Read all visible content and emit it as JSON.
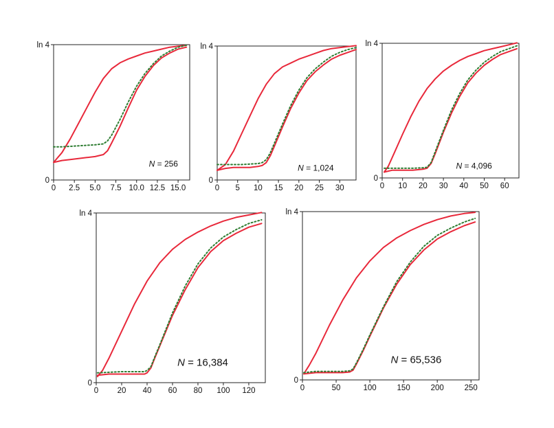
{
  "colors": {
    "curve": "#e8283a",
    "reference": "#2e7d32",
    "frame": "#222222",
    "background": "#ffffff"
  },
  "chart_data": [
    {
      "type": "line",
      "title": "",
      "xlabel": "",
      "ylabel": "",
      "n_label_italic": "N",
      "n_label_value": " = 256",
      "x_ticks": [
        0,
        2.5,
        5.0,
        7.5,
        10.0,
        12.5,
        15.0
      ],
      "x_tick_labels": [
        "0",
        "2.5",
        "5.0",
        "7.5",
        "10.0",
        "12.5",
        "15.0"
      ],
      "xlim": [
        0,
        16.4
      ],
      "y_ticks": [
        0,
        1.386
      ],
      "y_tick_labels": [
        "0",
        "ln 4"
      ],
      "ylim": [
        0,
        1.386
      ],
      "series": [
        {
          "style": "solid",
          "x": [
            0,
            1,
            2,
            3,
            4,
            5,
            6,
            7,
            8,
            9,
            10,
            11,
            12,
            13,
            14,
            15,
            16
          ],
          "values": [
            0.18,
            0.28,
            0.42,
            0.58,
            0.74,
            0.9,
            1.04,
            1.14,
            1.2,
            1.24,
            1.27,
            1.3,
            1.32,
            1.34,
            1.36,
            1.37,
            1.38
          ]
        },
        {
          "style": "solid",
          "x": [
            0,
            1,
            2,
            3,
            4,
            5,
            6,
            6.5,
            7,
            8,
            9,
            10,
            11,
            12,
            13,
            14,
            15,
            16
          ],
          "values": [
            0.18,
            0.2,
            0.21,
            0.22,
            0.23,
            0.24,
            0.26,
            0.3,
            0.38,
            0.55,
            0.74,
            0.92,
            1.06,
            1.17,
            1.25,
            1.3,
            1.34,
            1.36
          ]
        },
        {
          "style": "dotted",
          "x": [
            0,
            1,
            2,
            3,
            4,
            5,
            6,
            6.5,
            7,
            8,
            9,
            10,
            11,
            12,
            13,
            14,
            15,
            16
          ],
          "values": [
            0.34,
            0.34,
            0.345,
            0.35,
            0.355,
            0.36,
            0.37,
            0.4,
            0.46,
            0.62,
            0.8,
            0.96,
            1.09,
            1.19,
            1.27,
            1.32,
            1.36,
            1.38
          ]
        }
      ]
    },
    {
      "type": "line",
      "title": "",
      "xlabel": "",
      "ylabel": "",
      "n_label_italic": "N",
      "n_label_value": " = 1,024",
      "x_ticks": [
        0,
        5,
        10,
        15,
        20,
        25,
        30
      ],
      "x_tick_labels": [
        "0",
        "5",
        "10",
        "15",
        "20",
        "25",
        "30"
      ],
      "xlim": [
        0,
        34
      ],
      "y_ticks": [
        0,
        1.386
      ],
      "y_tick_labels": [
        "0",
        "ln 4"
      ],
      "ylim": [
        0,
        1.386
      ],
      "series": [
        {
          "style": "solid",
          "x": [
            0,
            2,
            4,
            6,
            8,
            10,
            12,
            14,
            16,
            18,
            20,
            22,
            24,
            26,
            28,
            30,
            32,
            34
          ],
          "values": [
            0.1,
            0.16,
            0.3,
            0.48,
            0.66,
            0.84,
            0.99,
            1.1,
            1.17,
            1.21,
            1.25,
            1.28,
            1.31,
            1.34,
            1.36,
            1.37,
            1.38,
            1.39
          ]
        },
        {
          "style": "solid",
          "x": [
            0,
            2,
            4,
            6,
            8,
            10,
            11,
            12,
            13,
            14,
            16,
            18,
            20,
            22,
            24,
            26,
            28,
            30,
            32,
            34
          ],
          "values": [
            0.1,
            0.12,
            0.13,
            0.13,
            0.13,
            0.14,
            0.15,
            0.18,
            0.25,
            0.35,
            0.55,
            0.74,
            0.9,
            1.03,
            1.12,
            1.19,
            1.25,
            1.29,
            1.32,
            1.35
          ]
        },
        {
          "style": "dotted",
          "x": [
            0,
            2,
            4,
            6,
            8,
            10,
            11,
            12,
            13,
            14,
            16,
            18,
            20,
            22,
            24,
            26,
            28,
            30,
            32,
            34
          ],
          "values": [
            0.16,
            0.16,
            0.16,
            0.16,
            0.165,
            0.17,
            0.18,
            0.21,
            0.28,
            0.38,
            0.58,
            0.77,
            0.93,
            1.06,
            1.15,
            1.22,
            1.28,
            1.32,
            1.35,
            1.37
          ]
        }
      ]
    },
    {
      "type": "line",
      "title": "",
      "xlabel": "",
      "ylabel": "",
      "n_label_italic": "N",
      "n_label_value": " = 4,096",
      "x_ticks": [
        0,
        10,
        20,
        30,
        40,
        50,
        60
      ],
      "x_tick_labels": [
        "0",
        "10",
        "20",
        "30",
        "40",
        "50",
        "60"
      ],
      "xlim": [
        0,
        67
      ],
      "y_ticks": [
        0,
        1.386
      ],
      "y_tick_labels": [
        "0",
        "ln 4"
      ],
      "ylim": [
        0,
        1.386
      ],
      "series": [
        {
          "style": "solid",
          "x": [
            1,
            3,
            6,
            10,
            14,
            18,
            22,
            26,
            30,
            34,
            38,
            42,
            46,
            50,
            54,
            58,
            62,
            66
          ],
          "values": [
            0.06,
            0.12,
            0.26,
            0.45,
            0.63,
            0.79,
            0.92,
            1.02,
            1.1,
            1.16,
            1.21,
            1.25,
            1.28,
            1.31,
            1.33,
            1.35,
            1.37,
            1.39
          ]
        },
        {
          "style": "solid",
          "x": [
            1,
            5,
            10,
            15,
            20,
            22,
            24,
            26,
            30,
            34,
            38,
            42,
            46,
            50,
            54,
            58,
            62,
            66
          ],
          "values": [
            0.06,
            0.08,
            0.08,
            0.08,
            0.09,
            0.1,
            0.15,
            0.25,
            0.47,
            0.67,
            0.84,
            0.98,
            1.08,
            1.16,
            1.22,
            1.27,
            1.3,
            1.33
          ]
        },
        {
          "style": "dotted",
          "x": [
            1,
            5,
            10,
            15,
            20,
            22,
            24,
            26,
            30,
            34,
            38,
            42,
            46,
            50,
            54,
            58,
            62,
            66
          ],
          "values": [
            0.1,
            0.1,
            0.1,
            0.1,
            0.105,
            0.11,
            0.16,
            0.27,
            0.49,
            0.7,
            0.87,
            1.01,
            1.11,
            1.19,
            1.25,
            1.3,
            1.33,
            1.36
          ]
        }
      ]
    },
    {
      "type": "line",
      "title": "",
      "xlabel": "",
      "ylabel": "",
      "n_label_italic": "N",
      "n_label_value": " = 16,384",
      "x_ticks": [
        0,
        20,
        40,
        60,
        80,
        100,
        120
      ],
      "x_tick_labels": [
        "0",
        "20",
        "40",
        "60",
        "80",
        "100",
        "120"
      ],
      "xlim": [
        0,
        133
      ],
      "y_ticks": [
        0,
        1.386
      ],
      "y_tick_labels": [
        "0",
        "ln 4"
      ],
      "ylim": [
        0,
        1.386
      ],
      "series": [
        {
          "style": "solid",
          "x": [
            1,
            5,
            10,
            20,
            30,
            40,
            50,
            60,
            70,
            80,
            90,
            100,
            110,
            120,
            130
          ],
          "values": [
            0.05,
            0.1,
            0.2,
            0.42,
            0.64,
            0.83,
            0.98,
            1.09,
            1.17,
            1.23,
            1.28,
            1.32,
            1.35,
            1.37,
            1.39
          ]
        },
        {
          "style": "solid",
          "x": [
            1,
            10,
            20,
            30,
            38,
            40,
            43,
            46,
            50,
            60,
            70,
            80,
            90,
            100,
            110,
            120,
            130
          ],
          "values": [
            0.06,
            0.07,
            0.07,
            0.07,
            0.07,
            0.08,
            0.12,
            0.2,
            0.3,
            0.55,
            0.76,
            0.94,
            1.07,
            1.16,
            1.22,
            1.27,
            1.3
          ]
        },
        {
          "style": "dotted",
          "x": [
            1,
            10,
            20,
            30,
            38,
            40,
            43,
            46,
            50,
            60,
            70,
            80,
            90,
            100,
            110,
            120,
            130
          ],
          "values": [
            0.08,
            0.085,
            0.09,
            0.09,
            0.09,
            0.1,
            0.13,
            0.21,
            0.31,
            0.57,
            0.79,
            0.97,
            1.1,
            1.19,
            1.25,
            1.3,
            1.33
          ]
        }
      ]
    },
    {
      "type": "line",
      "title": "",
      "xlabel": "",
      "ylabel": "",
      "n_label_italic": "N",
      "n_label_value": " = 65,536",
      "x_ticks": [
        0,
        50,
        100,
        150,
        200,
        250
      ],
      "x_tick_labels": [
        "0",
        "50",
        "100",
        "150",
        "200",
        "250"
      ],
      "xlim": [
        0,
        262
      ],
      "y_ticks": [
        0,
        1.386
      ],
      "y_tick_labels": [
        "0",
        "ln 4"
      ],
      "ylim": [
        0,
        1.386
      ],
      "series": [
        {
          "style": "solid",
          "x": [
            2,
            10,
            20,
            40,
            60,
            80,
            100,
            120,
            140,
            160,
            180,
            200,
            220,
            240,
            256
          ],
          "values": [
            0.05,
            0.12,
            0.22,
            0.45,
            0.66,
            0.84,
            0.98,
            1.09,
            1.17,
            1.23,
            1.28,
            1.32,
            1.35,
            1.37,
            1.38
          ]
        },
        {
          "style": "solid",
          "x": [
            2,
            20,
            40,
            60,
            70,
            75,
            80,
            90,
            100,
            120,
            140,
            160,
            180,
            200,
            220,
            240,
            256
          ],
          "values": [
            0.05,
            0.06,
            0.06,
            0.06,
            0.065,
            0.08,
            0.13,
            0.24,
            0.36,
            0.59,
            0.79,
            0.95,
            1.07,
            1.16,
            1.22,
            1.27,
            1.3
          ]
        },
        {
          "style": "dotted",
          "x": [
            2,
            20,
            40,
            60,
            70,
            75,
            80,
            90,
            100,
            120,
            140,
            160,
            180,
            200,
            220,
            240,
            256
          ],
          "values": [
            0.06,
            0.07,
            0.07,
            0.07,
            0.075,
            0.09,
            0.14,
            0.25,
            0.37,
            0.6,
            0.81,
            0.97,
            1.1,
            1.19,
            1.25,
            1.3,
            1.33
          ]
        }
      ]
    }
  ]
}
